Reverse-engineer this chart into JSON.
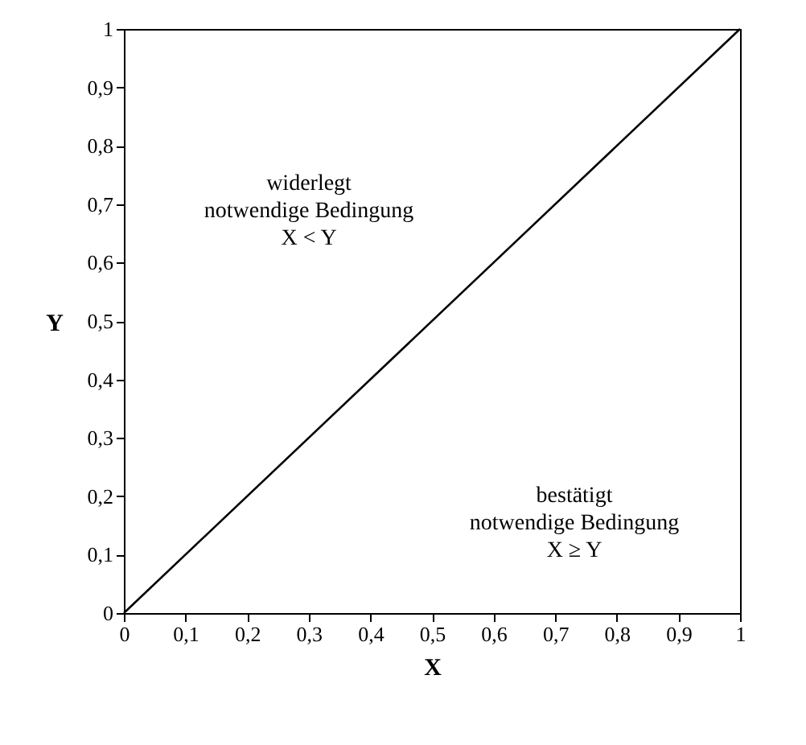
{
  "chart_data": {
    "type": "line",
    "xlabel": "X",
    "ylabel": "Y",
    "x": [
      0,
      1
    ],
    "values": [
      0,
      1
    ],
    "color": "#000000",
    "xlim": [
      0,
      1
    ],
    "ylim": [
      0,
      1
    ],
    "xticks": [
      0,
      {
        "value": 0.1,
        "label": "0,1"
      },
      {
        "value": 0.2,
        "label": "0,2"
      },
      {
        "value": 0.3,
        "label": "0,3"
      },
      {
        "value": 0.4,
        "label": "0,4"
      },
      {
        "value": 0.5,
        "label": "0,5"
      },
      {
        "value": 0.6,
        "label": "0,6"
      },
      {
        "value": 0.7,
        "label": "0,7"
      },
      {
        "value": 0.8,
        "label": "0,8"
      },
      {
        "value": 0.9,
        "label": "0,9"
      },
      1
    ],
    "yticks": [
      0,
      {
        "value": 0.1,
        "label": "0,1"
      },
      {
        "value": 0.2,
        "label": "0,2"
      },
      {
        "value": 0.3,
        "label": "0,3"
      },
      {
        "value": 0.4,
        "label": "0,4"
      },
      {
        "value": 0.5,
        "label": "0,5"
      },
      {
        "value": 0.6,
        "label": "0,6"
      },
      {
        "value": 0.7,
        "label": "0,7"
      },
      {
        "value": 0.8,
        "label": "0,8"
      },
      {
        "value": 0.9,
        "label": "0,9"
      },
      1
    ],
    "annotations": [
      "widerlegt\nnotwendige Bedingung\nX < Y",
      "bestätigt\nnotwendige Bedingung\nX ≥ Y"
    ]
  }
}
